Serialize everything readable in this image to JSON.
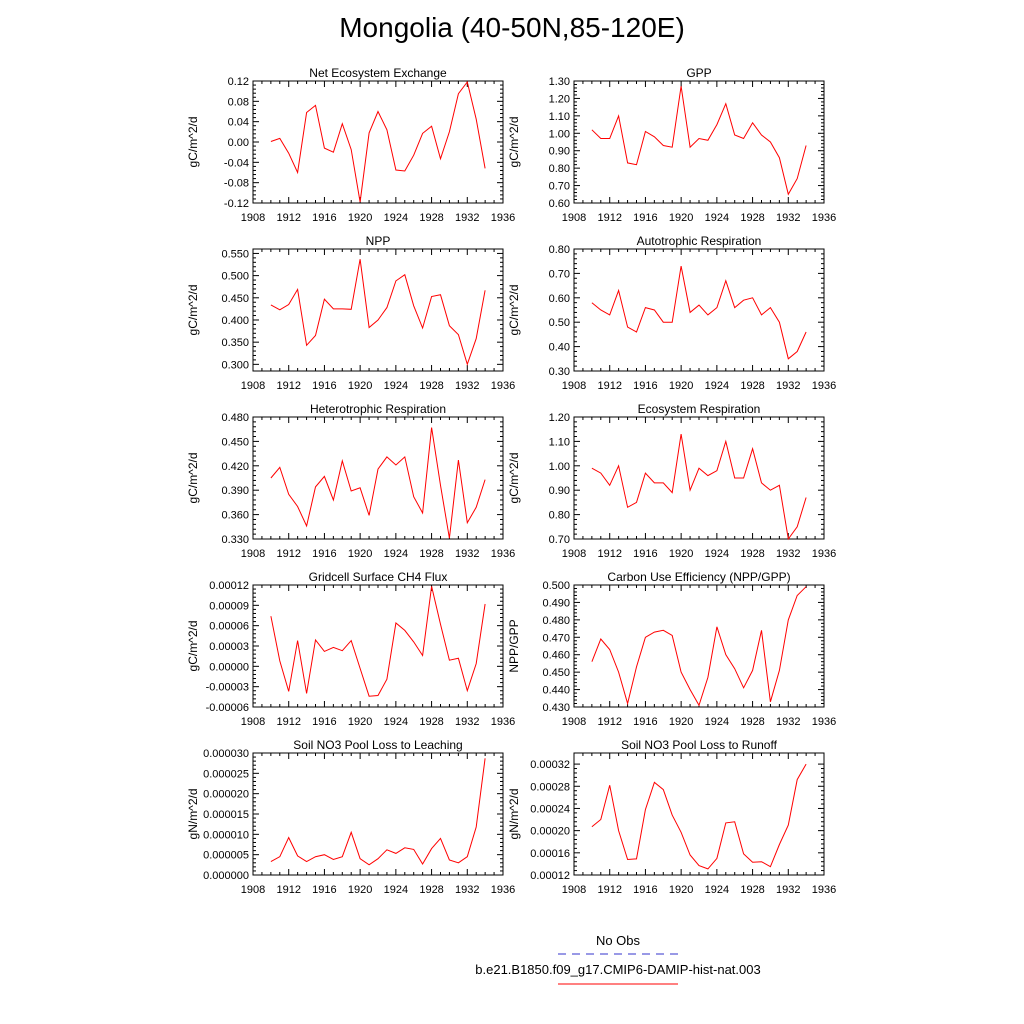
{
  "figure_title": "Mongolia (40-50N,85-120E)",
  "legend": {
    "entries": [
      {
        "label": "No Obs",
        "color": "#3333cc",
        "style": "dashed"
      },
      {
        "label": "b.e21.B1850.f09_g17.CMIP6-DAMIP-hist-nat.003",
        "color": "#ff0000",
        "style": "solid"
      }
    ]
  },
  "chart_data": [
    {
      "type": "line",
      "title": "Net Ecosystem Exchange",
      "ylabel": "gC/m^2/d",
      "xlim": [
        1908,
        1936
      ],
      "x_ticks": [
        "1908",
        "1912",
        "1916",
        "1920",
        "1924",
        "1928",
        "1932",
        "1936"
      ],
      "ylim": [
        -0.12,
        0.12
      ],
      "y_ticks": [
        "-0.12",
        "-0.08",
        "-0.04",
        "0.00",
        "0.04",
        "0.08",
        "0.12"
      ],
      "series": [
        {
          "color": "#ff0000",
          "x": [
            1910,
            1911,
            1912,
            1913,
            1914,
            1915,
            1916,
            1917,
            1918,
            1919,
            1920,
            1921,
            1922,
            1923,
            1924,
            1925,
            1926,
            1927,
            1928,
            1929,
            1930,
            1931,
            1932,
            1933,
            1934
          ],
          "values": [
            0.001,
            0.007,
            -0.022,
            -0.06,
            0.058,
            0.072,
            -0.012,
            -0.02,
            0.036,
            -0.015,
            -0.118,
            0.018,
            0.06,
            0.024,
            -0.055,
            -0.057,
            -0.026,
            0.017,
            0.031,
            -0.033,
            0.02,
            0.095,
            0.118,
            0.045,
            -0.052
          ]
        }
      ]
    },
    {
      "type": "line",
      "title": "GPP",
      "ylabel": "gC/m^2/d",
      "xlim": [
        1908,
        1936
      ],
      "x_ticks": [
        "1908",
        "1912",
        "1916",
        "1920",
        "1924",
        "1928",
        "1932",
        "1936"
      ],
      "ylim": [
        0.6,
        1.3
      ],
      "y_ticks": [
        "0.60",
        "0.70",
        "0.80",
        "0.90",
        "1.00",
        "1.10",
        "1.20",
        "1.30"
      ],
      "series": [
        {
          "color": "#ff0000",
          "x": [
            1910,
            1911,
            1912,
            1913,
            1914,
            1915,
            1916,
            1917,
            1918,
            1919,
            1920,
            1921,
            1922,
            1923,
            1924,
            1925,
            1926,
            1927,
            1928,
            1929,
            1930,
            1931,
            1932,
            1933,
            1934
          ],
          "values": [
            1.02,
            0.97,
            0.97,
            1.1,
            0.83,
            0.82,
            1.01,
            0.98,
            0.93,
            0.92,
            1.27,
            0.92,
            0.97,
            0.96,
            1.05,
            1.17,
            0.99,
            0.97,
            1.06,
            0.99,
            0.95,
            0.86,
            0.65,
            0.74,
            0.93
          ]
        }
      ]
    },
    {
      "type": "line",
      "title": "NPP",
      "ylabel": "gC/m^2/d",
      "xlim": [
        1908,
        1936
      ],
      "x_ticks": [
        "1908",
        "1912",
        "1916",
        "1920",
        "1924",
        "1928",
        "1932",
        "1936"
      ],
      "ylim": [
        0.285,
        0.56
      ],
      "y_ticks": [
        "0.300",
        "0.350",
        "0.400",
        "0.450",
        "0.500",
        "0.550"
      ],
      "series": [
        {
          "color": "#ff0000",
          "x": [
            1910,
            1911,
            1912,
            1913,
            1914,
            1915,
            1916,
            1917,
            1918,
            1919,
            1920,
            1921,
            1922,
            1923,
            1924,
            1925,
            1926,
            1927,
            1928,
            1929,
            1930,
            1931,
            1932,
            1933,
            1934
          ],
          "values": [
            0.434,
            0.423,
            0.435,
            0.469,
            0.343,
            0.365,
            0.447,
            0.425,
            0.425,
            0.424,
            0.537,
            0.383,
            0.4,
            0.428,
            0.488,
            0.502,
            0.432,
            0.382,
            0.453,
            0.457,
            0.387,
            0.367,
            0.3,
            0.358,
            0.467
          ]
        }
      ]
    },
    {
      "type": "line",
      "title": "Autotrophic Respiration",
      "ylabel": "gC/m^2/d",
      "xlim": [
        1908,
        1936
      ],
      "x_ticks": [
        "1908",
        "1912",
        "1916",
        "1920",
        "1924",
        "1928",
        "1932",
        "1936"
      ],
      "ylim": [
        0.3,
        0.8
      ],
      "y_ticks": [
        "0.30",
        "0.40",
        "0.50",
        "0.60",
        "0.70",
        "0.80"
      ],
      "series": [
        {
          "color": "#ff0000",
          "x": [
            1910,
            1911,
            1912,
            1913,
            1914,
            1915,
            1916,
            1917,
            1918,
            1919,
            1920,
            1921,
            1922,
            1923,
            1924,
            1925,
            1926,
            1927,
            1928,
            1929,
            1930,
            1931,
            1932,
            1933,
            1934
          ],
          "values": [
            0.58,
            0.55,
            0.53,
            0.63,
            0.48,
            0.46,
            0.56,
            0.55,
            0.5,
            0.5,
            0.73,
            0.54,
            0.57,
            0.53,
            0.56,
            0.67,
            0.56,
            0.59,
            0.6,
            0.53,
            0.56,
            0.5,
            0.35,
            0.38,
            0.46
          ]
        }
      ]
    },
    {
      "type": "line",
      "title": "Heterotrophic Respiration",
      "ylabel": "gC/m^2/d",
      "xlim": [
        1908,
        1936
      ],
      "x_ticks": [
        "1908",
        "1912",
        "1916",
        "1920",
        "1924",
        "1928",
        "1932",
        "1936"
      ],
      "ylim": [
        0.33,
        0.48
      ],
      "y_ticks": [
        "0.330",
        "0.360",
        "0.390",
        "0.420",
        "0.450",
        "0.480"
      ],
      "series": [
        {
          "color": "#ff0000",
          "x": [
            1910,
            1911,
            1912,
            1913,
            1914,
            1915,
            1916,
            1917,
            1918,
            1919,
            1920,
            1921,
            1922,
            1923,
            1924,
            1925,
            1926,
            1927,
            1928,
            1929,
            1930,
            1931,
            1932,
            1933,
            1934
          ],
          "values": [
            0.405,
            0.418,
            0.385,
            0.37,
            0.346,
            0.394,
            0.407,
            0.378,
            0.426,
            0.389,
            0.393,
            0.359,
            0.416,
            0.431,
            0.421,
            0.431,
            0.382,
            0.362,
            0.467,
            0.396,
            0.331,
            0.427,
            0.35,
            0.369,
            0.403
          ]
        }
      ]
    },
    {
      "type": "line",
      "title": "Ecosystem Respiration",
      "ylabel": "gC/m^2/d",
      "xlim": [
        1908,
        1936
      ],
      "x_ticks": [
        "1908",
        "1912",
        "1916",
        "1920",
        "1924",
        "1928",
        "1932",
        "1936"
      ],
      "ylim": [
        0.7,
        1.2
      ],
      "y_ticks": [
        "0.70",
        "0.80",
        "0.90",
        "1.00",
        "1.10",
        "1.20"
      ],
      "series": [
        {
          "color": "#ff0000",
          "x": [
            1910,
            1911,
            1912,
            1913,
            1914,
            1915,
            1916,
            1917,
            1918,
            1919,
            1920,
            1921,
            1922,
            1923,
            1924,
            1925,
            1926,
            1927,
            1928,
            1929,
            1930,
            1931,
            1932,
            1933,
            1934
          ],
          "values": [
            0.99,
            0.97,
            0.92,
            1.0,
            0.83,
            0.85,
            0.97,
            0.93,
            0.93,
            0.89,
            1.13,
            0.9,
            0.99,
            0.96,
            0.98,
            1.1,
            0.95,
            0.95,
            1.07,
            0.93,
            0.9,
            0.92,
            0.7,
            0.75,
            0.87
          ]
        }
      ]
    },
    {
      "type": "line",
      "title": "Gridcell Surface CH4 Flux",
      "ylabel": "gC/m^2/d",
      "xlim": [
        1908,
        1936
      ],
      "x_ticks": [
        "1908",
        "1912",
        "1916",
        "1920",
        "1924",
        "1928",
        "1932",
        "1936"
      ],
      "ylim": [
        -6e-05,
        0.00012
      ],
      "y_ticks": [
        "-0.00006",
        "-0.00003",
        "0.00000",
        "0.00003",
        "0.00006",
        "0.00009",
        "0.00012"
      ],
      "series": [
        {
          "color": "#ff0000",
          "x": [
            1910,
            1911,
            1912,
            1913,
            1914,
            1915,
            1916,
            1917,
            1918,
            1919,
            1920,
            1921,
            1922,
            1923,
            1924,
            1925,
            1926,
            1927,
            1928,
            1929,
            1930,
            1931,
            1932,
            1933,
            1934
          ],
          "values": [
            7.4e-05,
            8e-06,
            -3.7e-05,
            3.8e-05,
            -4e-05,
            3.9e-05,
            2.2e-05,
            2.8e-05,
            2.3e-05,
            3.8e-05,
            -3e-06,
            -4.4e-05,
            -4.3e-05,
            -1.9e-05,
            6.4e-05,
            5.3e-05,
            3.6e-05,
            1.6e-05,
            0.000118,
            6.2e-05,
            9e-06,
            1.2e-05,
            -3.6e-05,
            4e-06,
            9.2e-05
          ]
        }
      ]
    },
    {
      "type": "line",
      "title": "Carbon Use Efficiency (NPP/GPP)",
      "ylabel": "NPP/GPP",
      "xlim": [
        1908,
        1936
      ],
      "x_ticks": [
        "1908",
        "1912",
        "1916",
        "1920",
        "1924",
        "1928",
        "1932",
        "1936"
      ],
      "ylim": [
        0.43,
        0.5
      ],
      "y_ticks": [
        "0.430",
        "0.440",
        "0.450",
        "0.460",
        "0.470",
        "0.480",
        "0.490",
        "0.500"
      ],
      "series": [
        {
          "color": "#ff0000",
          "x": [
            1910,
            1911,
            1912,
            1913,
            1914,
            1915,
            1916,
            1917,
            1918,
            1919,
            1920,
            1921,
            1922,
            1923,
            1924,
            1925,
            1926,
            1927,
            1928,
            1929,
            1930,
            1931,
            1932,
            1933,
            1934
          ],
          "values": [
            0.456,
            0.469,
            0.463,
            0.45,
            0.432,
            0.453,
            0.47,
            0.473,
            0.474,
            0.471,
            0.45,
            0.44,
            0.431,
            0.447,
            0.476,
            0.46,
            0.452,
            0.441,
            0.451,
            0.474,
            0.433,
            0.451,
            0.48,
            0.494,
            0.499
          ]
        }
      ]
    },
    {
      "type": "line",
      "title": "Soil NO3 Pool Loss to Leaching",
      "ylabel": "gN/m^2/d",
      "xlim": [
        1908,
        1936
      ],
      "x_ticks": [
        "1908",
        "1912",
        "1916",
        "1920",
        "1924",
        "1928",
        "1932",
        "1936"
      ],
      "ylim": [
        0.0,
        3e-05
      ],
      "y_ticks": [
        "0.000000",
        "0.000005",
        "0.000010",
        "0.000015",
        "0.000020",
        "0.000025",
        "0.000030"
      ],
      "series": [
        {
          "color": "#ff0000",
          "x": [
            1910,
            1911,
            1912,
            1913,
            1914,
            1915,
            1916,
            1917,
            1918,
            1919,
            1920,
            1921,
            1922,
            1923,
            1924,
            1925,
            1926,
            1927,
            1928,
            1929,
            1930,
            1931,
            1932,
            1933,
            1934
          ],
          "values": [
            3.3e-06,
            4.5e-06,
            9.2e-06,
            4.7e-06,
            3.3e-06,
            4.5e-06,
            5e-06,
            3.8e-06,
            4.5e-06,
            1.05e-05,
            4e-06,
            2.5e-06,
            4e-06,
            6.2e-06,
            5.3e-06,
            6.7e-06,
            6.3e-06,
            2.7e-06,
            6.5e-06,
            9e-06,
            3.7e-06,
            3e-06,
            4.5e-06,
            1.18e-05,
            2.87e-05
          ]
        }
      ]
    },
    {
      "type": "line",
      "title": "Soil NO3 Pool Loss to Runoff",
      "ylabel": "gN/m^2/d",
      "xlim": [
        1908,
        1936
      ],
      "x_ticks": [
        "1908",
        "1912",
        "1916",
        "1920",
        "1924",
        "1928",
        "1932",
        "1936"
      ],
      "ylim": [
        0.00012,
        0.00034
      ],
      "y_ticks": [
        "0.00012",
        "0.00016",
        "0.00020",
        "0.00024",
        "0.00028",
        "0.00032"
      ],
      "series": [
        {
          "color": "#ff0000",
          "x": [
            1910,
            1911,
            1912,
            1913,
            1914,
            1915,
            1916,
            1917,
            1918,
            1919,
            1920,
            1921,
            1922,
            1923,
            1924,
            1925,
            1926,
            1927,
            1928,
            1929,
            1930,
            1931,
            1932,
            1933,
            1934
          ],
          "values": [
            0.000207,
            0.00022,
            0.000282,
            0.0002,
            0.000148,
            0.000149,
            0.000238,
            0.000287,
            0.000274,
            0.000228,
            0.000197,
            0.000156,
            0.000137,
            0.000131,
            0.00015,
            0.000214,
            0.000216,
            0.000158,
            0.000143,
            0.000144,
            0.000135,
            0.000175,
            0.00021,
            0.000292,
            0.00032
          ]
        }
      ]
    }
  ]
}
